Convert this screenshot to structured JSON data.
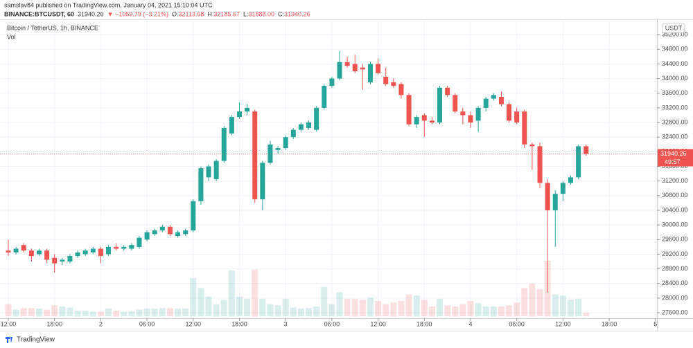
{
  "header": {
    "publisher": "samslav84 published on TradingView.com, January 04, 2021 15:10:04 UTC",
    "symbol": "BINANCE:BTCUSDT, 60",
    "last": "31940.26",
    "change": "▼ −1059.79 (−3.21%)",
    "ohlc": [
      {
        "key": "O:",
        "value": "32113.68"
      },
      {
        "key": "H:",
        "value": "32185.67"
      },
      {
        "key": "L:",
        "value": "31888.00"
      },
      {
        "key": "C:",
        "value": "31940.26"
      }
    ]
  },
  "chart_data": {
    "type": "candlestick",
    "title": "Bitcoin / TetherUS, 1h, BINANCE",
    "volume_label": "Vol",
    "currency": "USDT",
    "countdown": "49:57",
    "last_price": 31940.26,
    "up_color": "#26a69a",
    "down_color": "#ef5350",
    "x": [
      0,
      1,
      2,
      3,
      4,
      5,
      6,
      7,
      8,
      9,
      10,
      11,
      12,
      13,
      14,
      15,
      16,
      17,
      18,
      19,
      20,
      21,
      22,
      23,
      24,
      25,
      26,
      27,
      28,
      29,
      30,
      31,
      32,
      33,
      34,
      35,
      36,
      37,
      38,
      39,
      40,
      41,
      42,
      43,
      44,
      45,
      46,
      47,
      48,
      49,
      50,
      51,
      52,
      53,
      54,
      55,
      56,
      57,
      58,
      59,
      60,
      61,
      62,
      63,
      64,
      65,
      66,
      67,
      68,
      69,
      70,
      71,
      72,
      73,
      74,
      75
    ],
    "open": [
      29300,
      29250,
      29450,
      29300,
      29200,
      29300,
      29100,
      29000,
      29000,
      29150,
      29200,
      29250,
      29350,
      29200,
      29400,
      29350,
      29350,
      29400,
      29600,
      29750,
      29850,
      29950,
      29700,
      29750,
      29850,
      30650,
      31300,
      31250,
      31750,
      32500,
      32950,
      33100,
      33100,
      30700,
      31700,
      32050,
      32100,
      32400,
      32600,
      32650,
      32600,
      33200,
      33800,
      34000,
      34450,
      34400,
      34300,
      33900,
      34400,
      34050,
      33900,
      33850,
      33550,
      32750,
      33000,
      32850,
      32800,
      33750,
      33550,
      33100,
      33000,
      32850,
      33200,
      33450,
      33500,
      33300,
      33100,
      33100,
      32200,
      32150,
      31150,
      30400,
      30850,
      31150,
      31300,
      32150
    ],
    "high": [
      29600,
      29400,
      29500,
      29350,
      29350,
      29350,
      29200,
      29100,
      29200,
      29300,
      29350,
      29400,
      29400,
      29450,
      29500,
      29450,
      29500,
      29700,
      29850,
      29900,
      30000,
      30000,
      29850,
      29900,
      30700,
      31600,
      31650,
      31800,
      32700,
      33000,
      33350,
      33300,
      33150,
      31750,
      32300,
      32150,
      32450,
      32650,
      32800,
      32850,
      33250,
      33850,
      34050,
      34750,
      34600,
      34650,
      34400,
      34450,
      34550,
      34300,
      34000,
      33900,
      33600,
      33000,
      33050,
      32950,
      33800,
      33800,
      33600,
      33200,
      33100,
      33250,
      33500,
      33600,
      33650,
      33350,
      33200,
      33150,
      32250,
      32250,
      31250,
      30950,
      31200,
      31350,
      32200,
      32200
    ],
    "low": [
      29150,
      29200,
      29250,
      29000,
      29150,
      28950,
      28700,
      28900,
      28950,
      29100,
      29150,
      29200,
      28950,
      29150,
      29300,
      29300,
      29300,
      29350,
      29550,
      29700,
      29800,
      29700,
      29650,
      29700,
      29800,
      30550,
      31200,
      31200,
      31700,
      32450,
      32900,
      33000,
      30600,
      30400,
      31650,
      31950,
      32050,
      32350,
      32550,
      32600,
      32550,
      33150,
      33750,
      33950,
      34300,
      34150,
      33700,
      33850,
      34100,
      33800,
      33750,
      33450,
      32700,
      32650,
      32400,
      32750,
      32750,
      33500,
      33050,
      32750,
      32650,
      32550,
      33100,
      33400,
      33250,
      32800,
      32750,
      32100,
      31500,
      31000,
      28150,
      29400,
      30650,
      31100,
      31250,
      31888
    ],
    "close": [
      29250,
      29350,
      29300,
      29150,
      29300,
      29050,
      28950,
      29050,
      29150,
      29250,
      29300,
      29350,
      29150,
      29400,
      29350,
      29400,
      29450,
      29650,
      29800,
      29850,
      29950,
      29750,
      29800,
      29850,
      30650,
      31550,
      31600,
      31750,
      32650,
      32950,
      33100,
      33200,
      30700,
      31700,
      32200,
      32100,
      32400,
      32600,
      32750,
      32800,
      33200,
      33800,
      34000,
      34450,
      34350,
      34200,
      34250,
      34400,
      34150,
      33850,
      33800,
      33550,
      32750,
      32950,
      32850,
      32800,
      33750,
      33550,
      33100,
      33000,
      32800,
      33200,
      33450,
      33550,
      33300,
      32850,
      32800,
      32200,
      32150,
      31150,
      30400,
      30850,
      31150,
      31300,
      32150,
      31940.26
    ],
    "volume": [
      22,
      12,
      15,
      15,
      14,
      12,
      20,
      18,
      16,
      10,
      10,
      8,
      8,
      14,
      10,
      8,
      9,
      12,
      14,
      14,
      15,
      15,
      14,
      14,
      70,
      52,
      36,
      22,
      30,
      84,
      36,
      32,
      86,
      32,
      22,
      20,
      32,
      16,
      14,
      15,
      18,
      54,
      22,
      44,
      32,
      32,
      30,
      34,
      28,
      22,
      25,
      28,
      40,
      38,
      30,
      18,
      32,
      20,
      18,
      22,
      28,
      24,
      18,
      18,
      18,
      20,
      25,
      52,
      60,
      50,
      102,
      40,
      38,
      30,
      32,
      6
    ],
    "xlim": [
      -1.08,
      84.2
    ],
    "xticks": [
      {
        "value": 0,
        "label": "12:00"
      },
      {
        "value": 6,
        "label": "18:00"
      },
      {
        "value": 12,
        "label": "2"
      },
      {
        "value": 18,
        "label": "06:00"
      },
      {
        "value": 24,
        "label": "12:00"
      },
      {
        "value": 30,
        "label": "18:00"
      },
      {
        "value": 36,
        "label": "3"
      },
      {
        "value": 42,
        "label": "06:00"
      },
      {
        "value": 48,
        "label": "12:00"
      },
      {
        "value": 54,
        "label": "18:00"
      },
      {
        "value": 60,
        "label": "4"
      },
      {
        "value": 66,
        "label": "06:00"
      },
      {
        "value": 72,
        "label": "12:00"
      },
      {
        "value": 78,
        "label": "18:00"
      },
      {
        "value": 84,
        "label": "5"
      }
    ],
    "ylim": [
      27450,
      35580
    ],
    "yticks": [
      {
        "value": 27600,
        "label": "27600.00"
      },
      {
        "value": 28000,
        "label": "28000.00"
      },
      {
        "value": 28400,
        "label": "28400.00"
      },
      {
        "value": 28800,
        "label": "28800.00"
      },
      {
        "value": 29200,
        "label": "29200.00"
      },
      {
        "value": 29600,
        "label": "29600.00"
      },
      {
        "value": 30000,
        "label": "30000.00"
      },
      {
        "value": 30400,
        "label": "30400.00"
      },
      {
        "value": 30800,
        "label": "30800.00"
      },
      {
        "value": 31200,
        "label": "31200.00"
      },
      {
        "value": 31600,
        "label": "31600.00"
      },
      {
        "value": 32000,
        "label": "32000.00"
      },
      {
        "value": 32400,
        "label": "32400.00"
      },
      {
        "value": 32800,
        "label": "32800.00"
      },
      {
        "value": 33200,
        "label": "33200.00"
      },
      {
        "value": 33600,
        "label": "33600.00"
      },
      {
        "value": 34000,
        "label": "34000.00"
      },
      {
        "value": 34400,
        "label": "34400.00"
      },
      {
        "value": 34800,
        "label": "34800.00"
      },
      {
        "value": 35200,
        "label": "35200.00"
      }
    ],
    "grid": true
  },
  "footer": {
    "brand": "TradingView"
  }
}
